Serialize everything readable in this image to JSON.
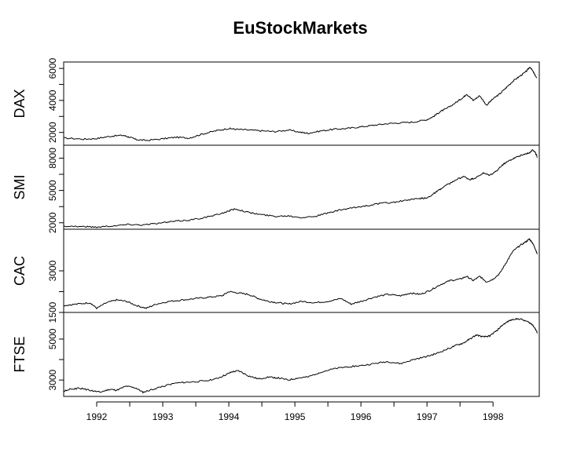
{
  "chart_data": {
    "type": "line",
    "title": "EuStockMarkets",
    "x_ticks": [
      "1992",
      "1993",
      "1994",
      "1995",
      "1996",
      "1997",
      "1998"
    ],
    "x_range": [
      1991.5,
      1998.7
    ],
    "panels": [
      {
        "name": "DAX",
        "ylim": [
          1200,
          6400
        ],
        "y_ticks": [
          "2000",
          "4000",
          "6000"
        ],
        "series": {
          "x": [
            1991.5,
            1991.8,
            1992.0,
            1992.2,
            1992.4,
            1992.5,
            1992.6,
            1992.75,
            1993.0,
            1993.2,
            1993.4,
            1993.6,
            1993.8,
            1994.0,
            1994.1,
            1994.3,
            1994.5,
            1994.7,
            1994.9,
            1995.1,
            1995.2,
            1995.4,
            1995.6,
            1995.8,
            1996.0,
            1996.2,
            1996.4,
            1996.6,
            1996.8,
            1997.0,
            1997.1,
            1997.2,
            1997.3,
            1997.45,
            1997.55,
            1997.6,
            1997.7,
            1997.8,
            1997.9,
            1998.0,
            1998.1,
            1998.2,
            1998.3,
            1998.4,
            1998.5,
            1998.56,
            1998.62,
            1998.66
          ],
          "y": [
            1650,
            1580,
            1620,
            1760,
            1820,
            1700,
            1550,
            1500,
            1600,
            1700,
            1650,
            1900,
            2100,
            2250,
            2200,
            2150,
            2100,
            2050,
            2150,
            2000,
            1950,
            2100,
            2200,
            2250,
            2350,
            2450,
            2550,
            2600,
            2650,
            2800,
            3000,
            3300,
            3500,
            3900,
            4200,
            4400,
            4000,
            4300,
            3700,
            4100,
            4400,
            4800,
            5200,
            5500,
            5800,
            6100,
            5700,
            5400
          ]
        }
      },
      {
        "name": "SMI",
        "ylim": [
          1400,
          9200
        ],
        "y_ticks": [
          "2000",
          "5000",
          "8000"
        ],
        "series": {
          "x": [
            1991.5,
            1991.8,
            1992.0,
            1992.3,
            1992.5,
            1992.7,
            1993.0,
            1993.2,
            1993.4,
            1993.6,
            1993.8,
            1994.0,
            1994.1,
            1994.3,
            1994.5,
            1994.7,
            1994.9,
            1995.1,
            1995.3,
            1995.5,
            1995.7,
            1995.9,
            1996.1,
            1996.3,
            1996.5,
            1996.7,
            1996.9,
            1997.0,
            1997.1,
            1997.2,
            1997.3,
            1997.45,
            1997.55,
            1997.65,
            1997.75,
            1997.85,
            1997.95,
            1998.05,
            1998.15,
            1998.25,
            1998.35,
            1998.45,
            1998.55,
            1998.6,
            1998.64,
            1998.67
          ],
          "y": [
            1700,
            1650,
            1600,
            1750,
            1850,
            1800,
            2000,
            2150,
            2250,
            2450,
            2700,
            3100,
            3300,
            2950,
            2750,
            2600,
            2650,
            2500,
            2600,
            2900,
            3200,
            3400,
            3600,
            3800,
            3900,
            4100,
            4250,
            4300,
            4700,
            5100,
            5500,
            6000,
            6300,
            6000,
            6200,
            6600,
            6400,
            6800,
            7400,
            7800,
            8100,
            8300,
            8500,
            8800,
            8500,
            8100
          ]
        }
      },
      {
        "name": "CAC",
        "ylim": [
          1500,
          4500
        ],
        "y_ticks": [
          "1500",
          "3000"
        ],
        "series": {
          "x": [
            1991.5,
            1991.7,
            1991.9,
            1992.0,
            1992.15,
            1992.3,
            1992.45,
            1992.6,
            1992.75,
            1992.9,
            1993.1,
            1993.3,
            1993.5,
            1993.7,
            1993.9,
            1994.0,
            1994.15,
            1994.3,
            1994.45,
            1994.6,
            1994.75,
            1994.9,
            1995.1,
            1995.3,
            1995.5,
            1995.7,
            1995.85,
            1996.0,
            1996.2,
            1996.4,
            1996.6,
            1996.75,
            1996.9,
            1997.05,
            1997.2,
            1997.35,
            1997.5,
            1997.6,
            1997.7,
            1997.8,
            1997.9,
            1998.0,
            1998.1,
            1998.2,
            1998.3,
            1998.4,
            1998.5,
            1998.55,
            1998.6,
            1998.64,
            1998.67
          ],
          "y": [
            1750,
            1800,
            1850,
            1650,
            1850,
            1950,
            1900,
            1750,
            1650,
            1800,
            1900,
            1950,
            2000,
            2050,
            2100,
            2250,
            2200,
            2150,
            2000,
            1900,
            1850,
            1800,
            1900,
            1850,
            1900,
            2000,
            1800,
            1900,
            2050,
            2150,
            2100,
            2200,
            2150,
            2300,
            2500,
            2650,
            2700,
            2800,
            2650,
            2800,
            2600,
            2700,
            2900,
            3300,
            3700,
            3900,
            4050,
            4150,
            4000,
            3800,
            3600
          ]
        }
      },
      {
        "name": "FTSE",
        "ylim": [
          2200,
          6300
        ],
        "y_ticks": [
          "3000",
          "5000"
        ],
        "series": {
          "x": [
            1991.5,
            1991.6,
            1991.75,
            1991.9,
            1992.05,
            1992.2,
            1992.3,
            1992.45,
            1992.6,
            1992.7,
            1992.85,
            1993.0,
            1993.2,
            1993.4,
            1993.6,
            1993.8,
            1993.95,
            1994.05,
            1994.15,
            1994.3,
            1994.45,
            1994.6,
            1994.75,
            1994.9,
            1995.05,
            1995.2,
            1995.4,
            1995.6,
            1995.8,
            1996.0,
            1996.2,
            1996.4,
            1996.6,
            1996.8,
            1997.0,
            1997.15,
            1997.3,
            1997.45,
            1997.55,
            1997.65,
            1997.75,
            1997.85,
            1997.95,
            1998.05,
            1998.15,
            1998.25,
            1998.35,
            1998.45,
            1998.55,
            1998.6,
            1998.64,
            1998.67
          ],
          "y": [
            2450,
            2550,
            2600,
            2500,
            2400,
            2550,
            2500,
            2700,
            2600,
            2400,
            2550,
            2700,
            2850,
            2900,
            2950,
            3050,
            3250,
            3400,
            3450,
            3200,
            3050,
            3150,
            3100,
            3000,
            3100,
            3150,
            3400,
            3550,
            3650,
            3700,
            3800,
            3900,
            3800,
            4000,
            4150,
            4300,
            4500,
            4700,
            4800,
            5000,
            5200,
            5100,
            5150,
            5400,
            5700,
            5900,
            6000,
            5950,
            5800,
            5700,
            5500,
            5300
          ]
        }
      }
    ]
  }
}
